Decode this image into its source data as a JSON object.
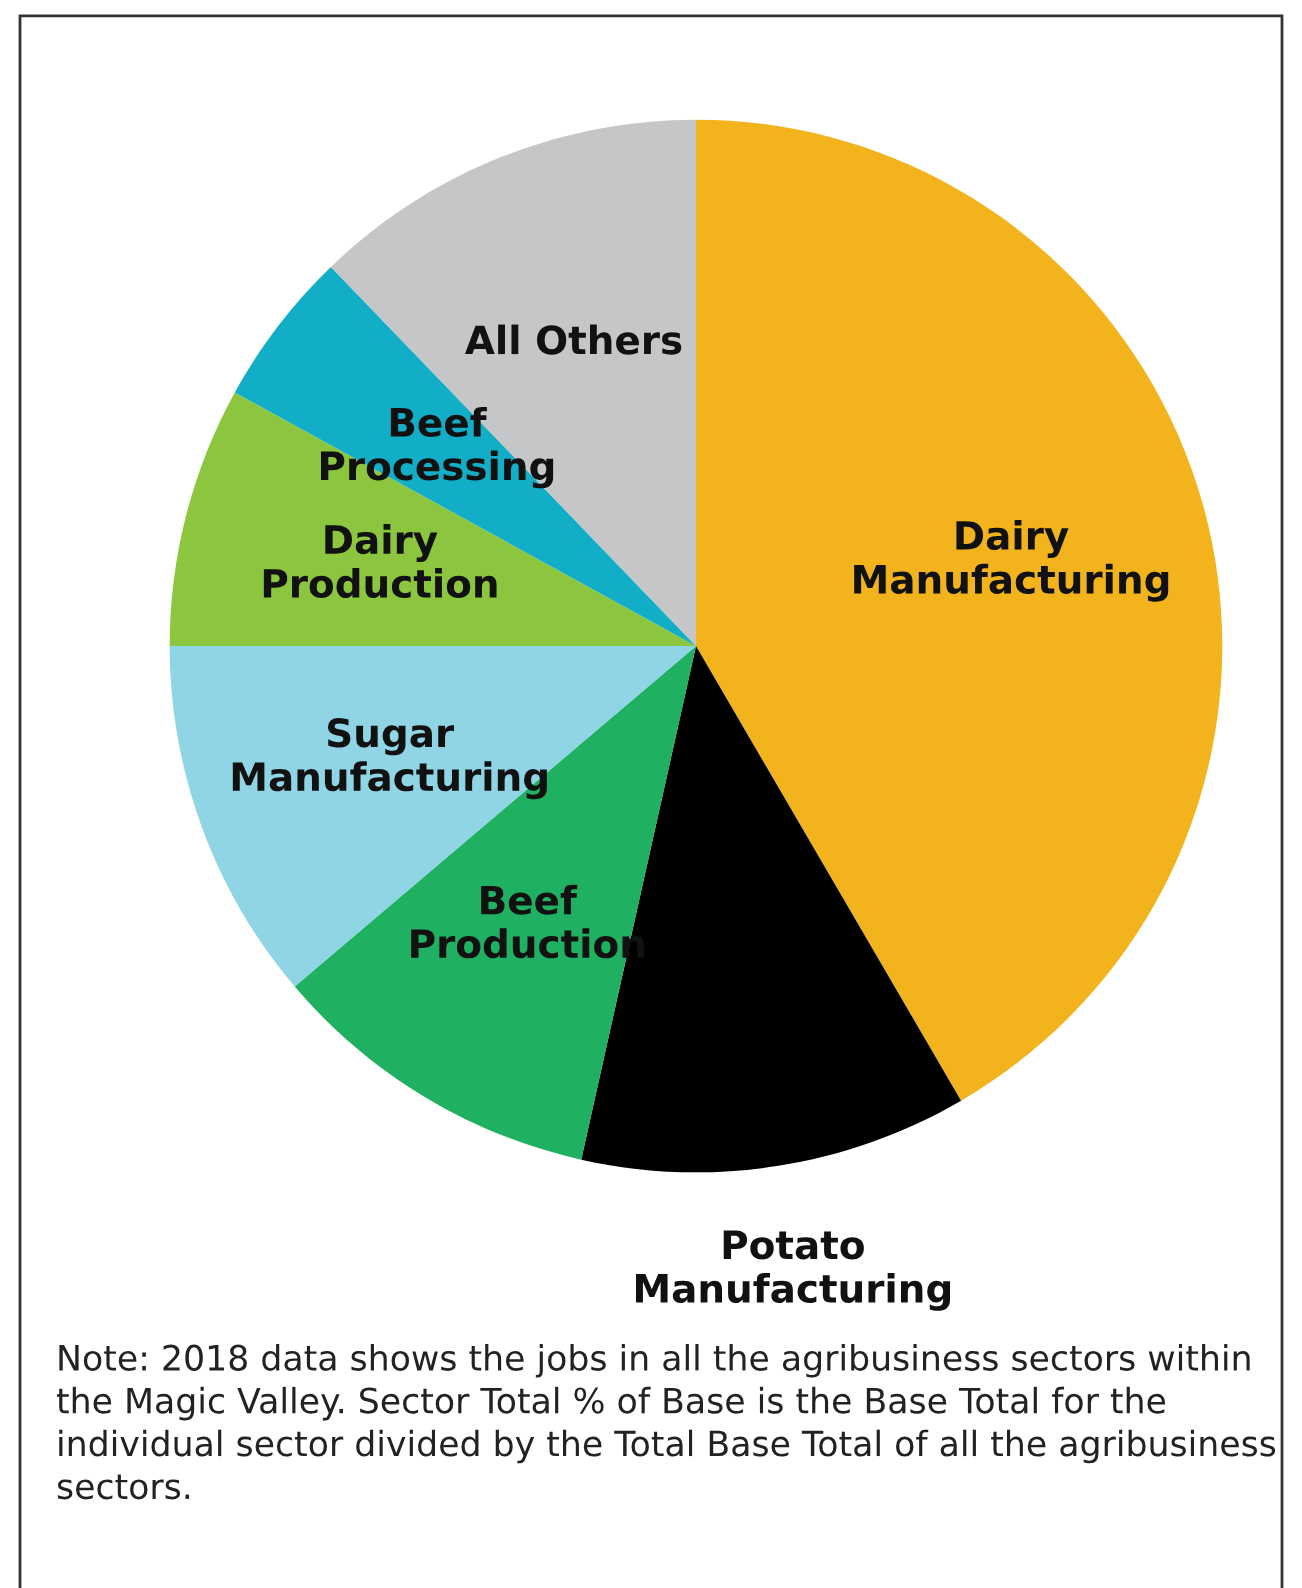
{
  "chart_data": {
    "type": "pie",
    "categories": [
      "Dairy\nManufacturing",
      "Potato\nManufacturing",
      "Beef\nProduction",
      "Sugar\nManufacturing",
      "Dairy\nProduction",
      "Beef\nProcessing",
      "All Others"
    ],
    "values": [
      41.6,
      11.9,
      10.3,
      11.2,
      8.0,
      4.8,
      12.2
    ],
    "colors": [
      "#f2b31d",
      "#000000",
      "#1fb062",
      "#8fd5e6",
      "#8cc63f",
      "#12adc6",
      "#c5c6c8"
    ],
    "annotations": [
      "Note: 2018 data shows the jobs in all the agribusiness sectors within the Magic Valley. Sector Total % of Base is the Base Total for the individual sector divided by the Total Base Total of all the agribusiness sectors."
    ]
  }
}
